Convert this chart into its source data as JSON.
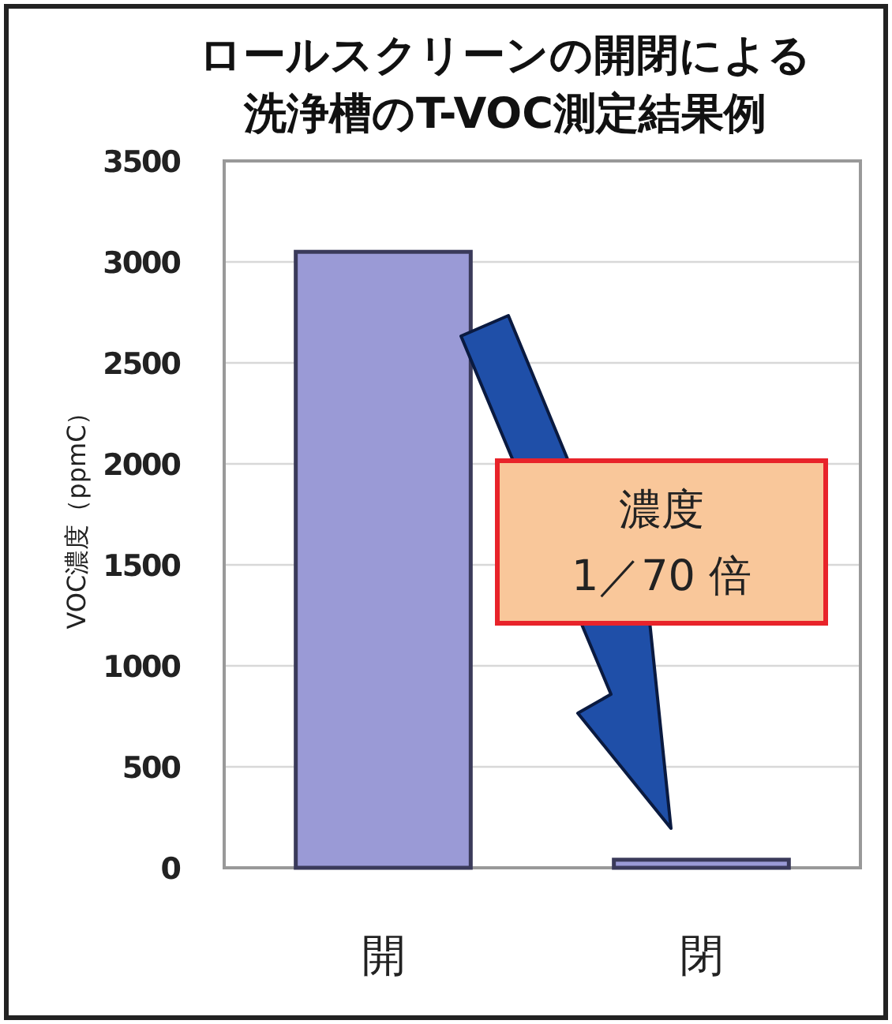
{
  "chart_data": {
    "type": "bar",
    "title": "ロールスクリーンの開閉による洗浄槽のT-VOC測定結果例",
    "ylabel": "VOC濃度（ppmC）",
    "categories": [
      "開",
      "閉"
    ],
    "values": [
      3050,
      40
    ],
    "color": "#9a9ad6",
    "ylim": [
      0,
      3500
    ],
    "yticks": [
      0,
      500,
      1000,
      1500,
      2000,
      2500,
      3000,
      3500
    ],
    "grid": "y",
    "annotations": [
      "濃度\n1／70 倍"
    ]
  }
}
